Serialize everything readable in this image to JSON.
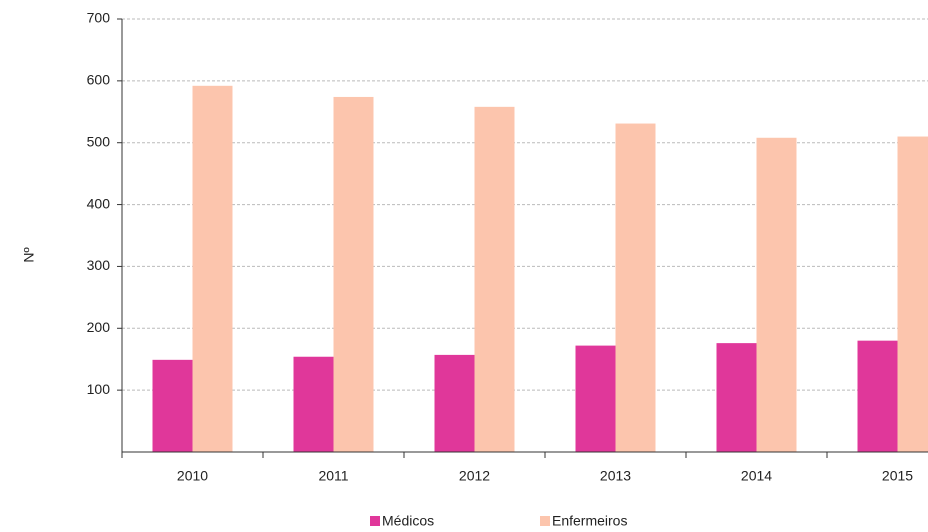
{
  "chart_data": {
    "type": "bar",
    "y_label": "Nº",
    "categories": [
      "2010",
      "2011",
      "2012",
      "2013",
      "2014",
      "2015"
    ],
    "series": [
      {
        "name": "Médicos",
        "color": "#e0379a",
        "values": [
          149,
          154,
          157,
          172,
          176,
          180
        ]
      },
      {
        "name": "Enfermeiros",
        "color": "#fcc5ad",
        "values": [
          592,
          574,
          558,
          531,
          508,
          510
        ]
      }
    ],
    "ylim": [
      0,
      700
    ],
    "yticks": [
      100,
      200,
      300,
      400,
      500,
      600,
      700
    ],
    "grid": true
  }
}
